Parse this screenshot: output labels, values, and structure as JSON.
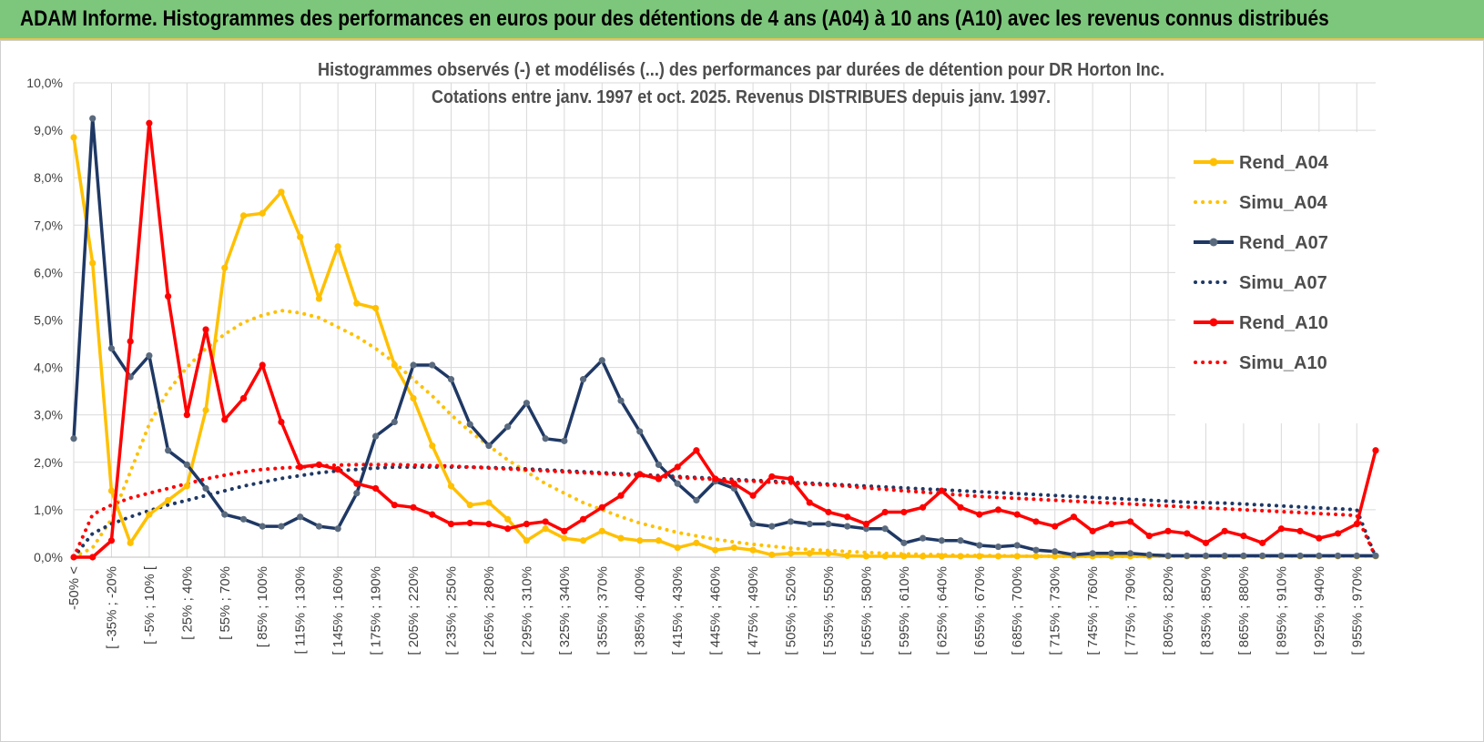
{
  "banner": {
    "title": "ADAM Informe. Histogrammes des performances en euros pour des détentions de 4 ans (A04) à 10 ans (A10) avec les revenus connus distribués"
  },
  "chart_data": {
    "type": "line",
    "title": "Histogrammes observés (-) et modélisés (...) des performances par durées de détention pour DR Horton Inc.",
    "subtitle": "Cotations entre janv. 1997 et oct. 2025.  Revenus DISTRIBUES depuis janv. 1997.",
    "ylim": [
      0,
      10
    ],
    "yticks": [
      "0,0%",
      "1,0%",
      "2,0%",
      "3,0%",
      "4,0%",
      "5,0%",
      "6,0%",
      "7,0%",
      "8,0%",
      "9,0%",
      "10,0%"
    ],
    "x_tick_labels": [
      "-50% <",
      "[ -35% ; -20%",
      "[ -5% ; 10% [",
      "[ 25% ; 40%",
      "[ 55% ; 70%",
      "[ 85% ; 100%",
      "[ 115% ; 130%",
      "[ 145% ; 160%",
      "[ 175% ; 190%",
      "[ 205% ; 220%",
      "[ 235% ; 250%",
      "[ 265% ; 280%",
      "[ 295% ; 310%",
      "[ 325% ; 340%",
      "[ 355% ; 370%",
      "[ 385% ; 400%",
      "[ 415% ; 430%",
      "[ 445% ; 460%",
      "[ 475% ; 490%",
      "[ 505% ; 520%",
      "[ 535% ; 550%",
      "[ 565% ; 580%",
      "[ 595% ; 610%",
      "[ 625% ; 640%",
      "[ 655% ; 670%",
      "[ 685% ; 700%",
      "[ 715% ; 730%",
      "[ 745% ; 760%",
      "[ 775% ; 790%",
      "[ 805% ; 820%",
      "[ 835% ; 850%",
      "[ 865% ; 880%",
      "[ 895% ; 910%",
      "[ 925% ; 940%",
      "[ 955% ; 970%"
    ],
    "n_points": 70,
    "series": [
      {
        "name": "Rend_A04",
        "style": "solid",
        "color": "#FFC000",
        "values": [
          8.85,
          6.2,
          1.4,
          0.3,
          0.9,
          1.2,
          1.5,
          3.1,
          6.1,
          7.2,
          7.25,
          7.7,
          6.75,
          5.45,
          6.55,
          5.35,
          5.25,
          4.05,
          3.35,
          2.35,
          1.5,
          1.1,
          1.15,
          0.8,
          0.35,
          0.6,
          0.4,
          0.35,
          0.55,
          0.4,
          0.35,
          0.35,
          0.2,
          0.3,
          0.15,
          0.2,
          0.15,
          0.05,
          0.08,
          0.08,
          0.08,
          0.03,
          0.02,
          0.02,
          0.02,
          0.02,
          0.02,
          0.02,
          0.02,
          0.02,
          0.02,
          0.02,
          0.02,
          0.02,
          0.02,
          0.02,
          0.02,
          0.02,
          0.02,
          0.02,
          0.02,
          0.02,
          0.02,
          0.02,
          0.02,
          0.02,
          0.02,
          0.02,
          0.02,
          0.02
        ]
      },
      {
        "name": "Simu_A04",
        "style": "dotted",
        "color": "#FFC000",
        "values": [
          0.0,
          0.2,
          0.8,
          1.8,
          2.8,
          3.5,
          4.0,
          4.4,
          4.7,
          4.95,
          5.1,
          5.2,
          5.15,
          5.05,
          4.85,
          4.65,
          4.4,
          4.1,
          3.75,
          3.4,
          3.0,
          2.65,
          2.35,
          2.05,
          1.8,
          1.55,
          1.35,
          1.15,
          1.0,
          0.85,
          0.72,
          0.62,
          0.52,
          0.45,
          0.38,
          0.32,
          0.27,
          0.23,
          0.19,
          0.16,
          0.14,
          0.12,
          0.1,
          0.08,
          0.07,
          0.06,
          0.05,
          0.04,
          0.035,
          0.03,
          0.025,
          0.02,
          0.02,
          0.02,
          0.02,
          0.02,
          0.02,
          0.02,
          0.02,
          0.02,
          0.02,
          0.02,
          0.02,
          0.02,
          0.02,
          0.02,
          0.02,
          0.02,
          0.02,
          0.02
        ]
      },
      {
        "name": "Rend_A07",
        "style": "solid",
        "color": "#1F3864",
        "values": [
          2.5,
          9.25,
          4.4,
          3.8,
          4.25,
          2.25,
          1.95,
          1.45,
          0.9,
          0.8,
          0.65,
          0.65,
          0.85,
          0.65,
          0.6,
          1.35,
          2.55,
          2.85,
          4.05,
          4.05,
          3.75,
          2.8,
          2.35,
          2.75,
          3.25,
          2.5,
          2.45,
          3.75,
          4.15,
          3.3,
          2.65,
          1.95,
          1.55,
          1.2,
          1.6,
          1.45,
          0.7,
          0.65,
          0.75,
          0.7,
          0.7,
          0.65,
          0.6,
          0.6,
          0.3,
          0.4,
          0.35,
          0.35,
          0.25,
          0.22,
          0.25,
          0.15,
          0.12,
          0.05,
          0.08,
          0.08,
          0.08,
          0.05,
          0.03,
          0.03,
          0.03,
          0.03,
          0.03,
          0.03,
          0.03,
          0.03,
          0.03,
          0.03,
          0.03,
          0.03
        ]
      },
      {
        "name": "Simu_A07",
        "style": "dotted",
        "color": "#1F3864",
        "values": [
          0.0,
          0.5,
          0.7,
          0.85,
          0.98,
          1.1,
          1.2,
          1.3,
          1.4,
          1.5,
          1.58,
          1.66,
          1.72,
          1.78,
          1.82,
          1.85,
          1.88,
          1.9,
          1.9,
          1.9,
          1.9,
          1.9,
          1.89,
          1.88,
          1.86,
          1.84,
          1.82,
          1.8,
          1.78,
          1.76,
          1.74,
          1.72,
          1.7,
          1.68,
          1.66,
          1.64,
          1.62,
          1.6,
          1.58,
          1.56,
          1.54,
          1.52,
          1.5,
          1.48,
          1.46,
          1.44,
          1.42,
          1.4,
          1.38,
          1.36,
          1.34,
          1.32,
          1.3,
          1.28,
          1.26,
          1.24,
          1.22,
          1.2,
          1.18,
          1.16,
          1.15,
          1.14,
          1.12,
          1.1,
          1.08,
          1.06,
          1.04,
          1.02,
          1.0,
          0.0
        ]
      },
      {
        "name": "Rend_A10",
        "style": "solid",
        "color": "#FF0000",
        "values": [
          0.0,
          0.0,
          0.35,
          4.55,
          9.15,
          5.5,
          3.0,
          4.8,
          2.9,
          3.35,
          4.05,
          2.85,
          1.9,
          1.95,
          1.85,
          1.55,
          1.45,
          1.1,
          1.05,
          0.9,
          0.7,
          0.72,
          0.7,
          0.6,
          0.7,
          0.75,
          0.55,
          0.8,
          1.05,
          1.3,
          1.75,
          1.65,
          1.9,
          2.25,
          1.65,
          1.55,
          1.3,
          1.7,
          1.65,
          1.15,
          0.95,
          0.85,
          0.7,
          0.95,
          0.95,
          1.05,
          1.4,
          1.05,
          0.9,
          1.0,
          0.9,
          0.75,
          0.65,
          0.85,
          0.55,
          0.7,
          0.75,
          0.45,
          0.55,
          0.5,
          0.3,
          0.55,
          0.45,
          0.3,
          0.6,
          0.55,
          0.4,
          0.5,
          0.7,
          2.25
        ]
      },
      {
        "name": "Simu_A10",
        "style": "dotted",
        "color": "#FF0000",
        "values": [
          0.0,
          0.9,
          1.1,
          1.25,
          1.35,
          1.45,
          1.55,
          1.65,
          1.73,
          1.8,
          1.85,
          1.88,
          1.9,
          1.92,
          1.94,
          1.95,
          1.95,
          1.95,
          1.94,
          1.93,
          1.92,
          1.9,
          1.88,
          1.86,
          1.84,
          1.82,
          1.8,
          1.78,
          1.76,
          1.74,
          1.72,
          1.7,
          1.68,
          1.66,
          1.64,
          1.62,
          1.6,
          1.58,
          1.56,
          1.54,
          1.52,
          1.5,
          1.46,
          1.43,
          1.4,
          1.37,
          1.34,
          1.31,
          1.28,
          1.26,
          1.24,
          1.22,
          1.2,
          1.18,
          1.16,
          1.14,
          1.12,
          1.1,
          1.08,
          1.06,
          1.04,
          1.02,
          1.0,
          0.98,
          0.96,
          0.94,
          0.92,
          0.9,
          0.88,
          0.0
        ]
      }
    ],
    "legend": [
      "Rend_A04",
      "Simu_A04",
      "Rend_A07",
      "Simu_A07",
      "Rend_A10",
      "Simu_A10"
    ]
  }
}
